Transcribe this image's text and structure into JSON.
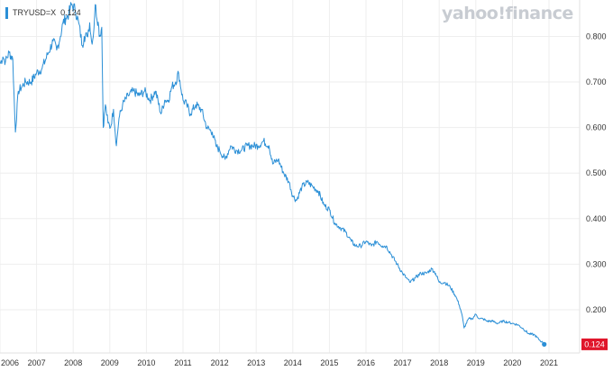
{
  "legend": {
    "symbol": "TRYUSD=X",
    "value": "0.124"
  },
  "watermark": "yahoo!finance",
  "last_price_label": "0.124",
  "colors": {
    "line": "#2b8fd6",
    "grid": "#eeeeee",
    "badge": "#e0162b",
    "axis_text": "#333333",
    "watermark": "#c8ccd2"
  },
  "chart_data": {
    "type": "line",
    "title": "",
    "xlabel": "",
    "ylabel": "",
    "xlim": [
      2006.0,
      2021.1
    ],
    "ylim": [
      0.105,
      0.88
    ],
    "y_ticks": [
      {
        "value": 0.2,
        "label": "0.200"
      },
      {
        "value": 0.3,
        "label": "0.300"
      },
      {
        "value": 0.4,
        "label": "0.400"
      },
      {
        "value": 0.5,
        "label": "0.500"
      },
      {
        "value": 0.6,
        "label": "0.600"
      },
      {
        "value": 0.7,
        "label": "0.700"
      },
      {
        "value": 0.8,
        "label": "0.800"
      }
    ],
    "x_ticks": [
      {
        "value": 2006,
        "label": "2006"
      },
      {
        "value": 2007,
        "label": "2007"
      },
      {
        "value": 2008,
        "label": "2008"
      },
      {
        "value": 2009,
        "label": "2009"
      },
      {
        "value": 2010,
        "label": "2010"
      },
      {
        "value": 2011,
        "label": "2011"
      },
      {
        "value": 2012,
        "label": "2012"
      },
      {
        "value": 2013,
        "label": "2013"
      },
      {
        "value": 2014,
        "label": "2014"
      },
      {
        "value": 2015,
        "label": "2015"
      },
      {
        "value": 2016,
        "label": "2016"
      },
      {
        "value": 2017,
        "label": "2017"
      },
      {
        "value": 2018,
        "label": "2018"
      },
      {
        "value": 2019,
        "label": "2019"
      },
      {
        "value": 2020,
        "label": "2020"
      },
      {
        "value": 2021,
        "label": "2021"
      }
    ],
    "grid": true,
    "series": [
      {
        "name": "TRYUSD=X",
        "x": [
          2006.0,
          2006.08,
          2006.15,
          2006.25,
          2006.35,
          2006.42,
          2006.5,
          2006.6,
          2006.7,
          2006.85,
          2007.0,
          2007.15,
          2007.3,
          2007.45,
          2007.55,
          2007.65,
          2007.72,
          2007.8,
          2007.88,
          2007.95,
          2008.05,
          2008.15,
          2008.25,
          2008.3,
          2008.38,
          2008.45,
          2008.5,
          2008.55,
          2008.6,
          2008.7,
          2008.72,
          2008.78,
          2008.82,
          2008.88,
          2008.95,
          2009.02,
          2009.1,
          2009.18,
          2009.25,
          2009.35,
          2009.5,
          2009.65,
          2009.8,
          2009.95,
          2010.1,
          2010.25,
          2010.4,
          2010.5,
          2010.6,
          2010.7,
          2010.8,
          2010.88,
          2011.0,
          2011.1,
          2011.2,
          2011.35,
          2011.5,
          2011.65,
          2011.8,
          2011.9,
          2012.0,
          2012.15,
          2012.3,
          2012.45,
          2012.6,
          2012.75,
          2012.9,
          2013.05,
          2013.2,
          2013.35,
          2013.45,
          2013.6,
          2013.75,
          2013.9,
          2014.0,
          2014.1,
          2014.25,
          2014.4,
          2014.55,
          2014.7,
          2014.85,
          2015.0,
          2015.15,
          2015.3,
          2015.45,
          2015.6,
          2015.72,
          2015.85,
          2016.0,
          2016.15,
          2016.3,
          2016.45,
          2016.55,
          2016.7,
          2016.85,
          2017.0,
          2017.1,
          2017.2,
          2017.35,
          2017.5,
          2017.65,
          2017.8,
          2017.9,
          2018.0,
          2018.15,
          2018.3,
          2018.45,
          2018.55,
          2018.62,
          2018.68,
          2018.8,
          2018.9,
          2019.0,
          2019.1,
          2019.2,
          2019.3,
          2019.45,
          2019.6,
          2019.75,
          2019.9,
          2020.0,
          2020.15,
          2020.3,
          2020.45,
          2020.6,
          2020.72,
          2020.8,
          2020.87
        ],
        "values": [
          0.74,
          0.755,
          0.745,
          0.765,
          0.75,
          0.59,
          0.68,
          0.69,
          0.7,
          0.7,
          0.72,
          0.73,
          0.76,
          0.79,
          0.77,
          0.8,
          0.83,
          0.84,
          0.85,
          0.87,
          0.86,
          0.83,
          0.78,
          0.8,
          0.8,
          0.83,
          0.79,
          0.8,
          0.87,
          0.82,
          0.8,
          0.82,
          0.6,
          0.65,
          0.61,
          0.6,
          0.64,
          0.56,
          0.62,
          0.65,
          0.67,
          0.68,
          0.67,
          0.68,
          0.66,
          0.68,
          0.63,
          0.66,
          0.66,
          0.69,
          0.7,
          0.72,
          0.66,
          0.65,
          0.63,
          0.65,
          0.64,
          0.6,
          0.59,
          0.56,
          0.55,
          0.53,
          0.56,
          0.55,
          0.55,
          0.56,
          0.56,
          0.56,
          0.57,
          0.56,
          0.52,
          0.53,
          0.5,
          0.48,
          0.45,
          0.44,
          0.47,
          0.48,
          0.47,
          0.46,
          0.43,
          0.42,
          0.39,
          0.38,
          0.37,
          0.35,
          0.34,
          0.34,
          0.35,
          0.34,
          0.35,
          0.34,
          0.34,
          0.32,
          0.3,
          0.28,
          0.27,
          0.26,
          0.27,
          0.28,
          0.28,
          0.29,
          0.28,
          0.26,
          0.26,
          0.25,
          0.23,
          0.21,
          0.19,
          0.16,
          0.18,
          0.18,
          0.19,
          0.18,
          0.18,
          0.175,
          0.175,
          0.17,
          0.175,
          0.172,
          0.17,
          0.167,
          0.158,
          0.147,
          0.145,
          0.135,
          0.13,
          0.124
        ]
      }
    ]
  }
}
